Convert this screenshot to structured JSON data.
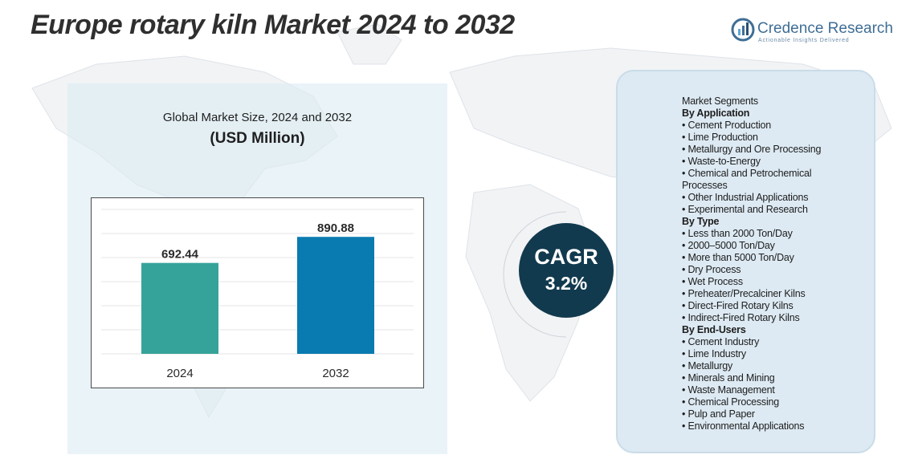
{
  "title": "Europe rotary kiln Market 2024 to 2032",
  "brand": {
    "name": "Credence Research",
    "tagline": "Actionable Insights Delivered",
    "color": "#3f6e96"
  },
  "chart_panel": {
    "subtitle": "Global Market Size, 2024 and 2032",
    "unit": "(USD Million)"
  },
  "chart_data": {
    "type": "bar",
    "categories": [
      "2024",
      "2032"
    ],
    "values": [
      692.44,
      890.88
    ],
    "value_labels": [
      "692.44",
      "890.88"
    ],
    "colors": [
      "#36a39a",
      "#0a7bb0"
    ],
    "ylim": [
      0,
      1100
    ],
    "grid": true,
    "legend": "none"
  },
  "cagr": {
    "label": "CAGR",
    "value": "3.2%",
    "color": "#123a4e"
  },
  "segments": {
    "heading": "Market Segments",
    "groups": [
      {
        "title": "By Application",
        "items": [
          "• Cement Production",
          "• Lime Production",
          "• Metallurgy and Ore Processing",
          "• Waste-to-Energy",
          "• Chemical and Petrochemical",
          "Processes",
          "• Other Industrial Applications",
          "• Experimental and Research"
        ]
      },
      {
        "title": "By Type",
        "items": [
          "• Less than 2000 Ton/Day",
          "• 2000–5000 Ton/Day",
          "• More than 5000 Ton/Day",
          "• Dry Process",
          "• Wet Process",
          "• Preheater/Precalciner Kilns",
          "• Direct-Fired Rotary Kilns",
          "• Indirect-Fired Rotary Kilns"
        ]
      },
      {
        "title": "By End-Users",
        "items": [
          "• Cement Industry",
          "• Lime Industry",
          "• Metallurgy",
          "• Minerals and Mining",
          "• Waste Management",
          "• Chemical Processing",
          "• Pulp and Paper",
          "•  Environmental Applications"
        ]
      }
    ]
  }
}
